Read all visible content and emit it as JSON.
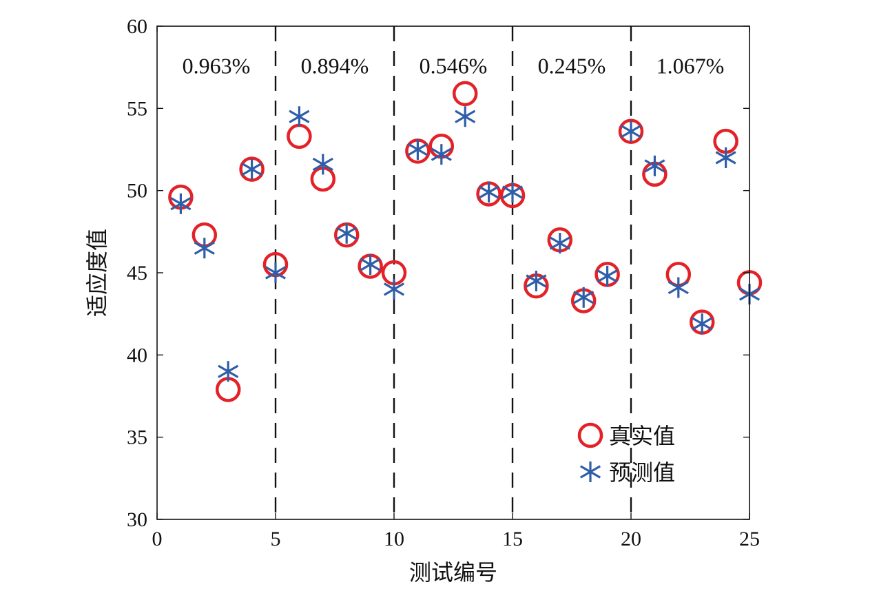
{
  "chart_data": {
    "type": "scatter",
    "title": "",
    "xlabel": "测试编号",
    "ylabel": "适应度值",
    "xlim": [
      0,
      25
    ],
    "ylim": [
      30,
      60
    ],
    "xticks": [
      0,
      5,
      10,
      15,
      20,
      25
    ],
    "yticks": [
      30,
      35,
      40,
      45,
      50,
      55,
      60
    ],
    "grid": false,
    "legend_position": "bottom-right",
    "x": [
      1,
      2,
      3,
      4,
      5,
      6,
      7,
      8,
      9,
      10,
      11,
      12,
      13,
      14,
      15,
      16,
      17,
      18,
      19,
      20,
      21,
      22,
      23,
      24,
      25
    ],
    "series": [
      {
        "name": "真实值",
        "marker": "circle",
        "color": "#e32228",
        "values": [
          49.6,
          47.3,
          37.9,
          51.3,
          45.5,
          53.3,
          50.7,
          47.3,
          45.4,
          45.0,
          52.4,
          52.7,
          55.9,
          49.8,
          49.7,
          44.2,
          47.0,
          43.3,
          44.9,
          53.6,
          51.0,
          44.9,
          42.0,
          53.0,
          44.4
        ]
      },
      {
        "name": "预测值",
        "marker": "asterisk",
        "color": "#2f5ea8",
        "values": [
          49.2,
          46.5,
          39.0,
          51.3,
          45.0,
          54.5,
          51.6,
          47.4,
          45.5,
          44.0,
          52.5,
          52.2,
          54.5,
          49.9,
          49.9,
          44.5,
          46.8,
          43.5,
          44.8,
          53.6,
          51.5,
          44.1,
          41.9,
          52.0,
          43.7
        ]
      }
    ],
    "vlines": [
      5,
      10,
      15,
      20
    ],
    "annotations": [
      {
        "text": "0.963%",
        "x": 2.5,
        "y": 57.6
      },
      {
        "text": "0.894%",
        "x": 7.5,
        "y": 57.6
      },
      {
        "text": "0.546%",
        "x": 12.5,
        "y": 57.6
      },
      {
        "text": "0.245%",
        "x": 17.5,
        "y": 57.6
      },
      {
        "text": "1.067%",
        "x": 22.5,
        "y": 57.6
      }
    ]
  }
}
